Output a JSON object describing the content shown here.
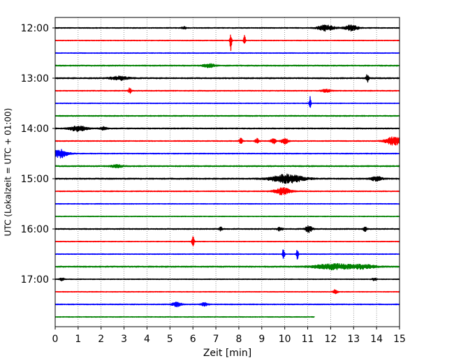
{
  "chart_data": {
    "type": "line",
    "title": "",
    "xlabel": "Zeit  [min]",
    "ylabel": "UTC (Lokalzeit = UTC + 01:00)",
    "xlim": [
      0,
      15
    ],
    "x_ticks": [
      0,
      1,
      2,
      3,
      4,
      5,
      6,
      7,
      8,
      9,
      10,
      11,
      12,
      13,
      14,
      15
    ],
    "y_tick_labels": [
      "12:00",
      "13:00",
      "14:00",
      "15:00",
      "16:00",
      "17:00"
    ],
    "y_tick_traces": [
      0,
      4,
      8,
      12,
      16,
      20
    ],
    "grid": "vertical dotted at each minute",
    "trace_interval_min": 15,
    "trace_colors": [
      "#000000",
      "#ff0000",
      "#0000ff",
      "#008000"
    ],
    "traces": [
      {
        "start": "12:00",
        "end_min": 15,
        "color": "#000000",
        "noise": 0.6,
        "events": [
          {
            "t": 5.6,
            "a": 2.0,
            "w": 0.1
          },
          {
            "t": 11.8,
            "a": 4.5,
            "w": 0.35
          },
          {
            "t": 12.9,
            "a": 4.0,
            "w": 0.3
          }
        ]
      },
      {
        "start": "12:15",
        "end_min": 15,
        "color": "#ff0000",
        "noise": 0.5,
        "events": [
          {
            "t": 7.65,
            "a": 14,
            "w": 0.04
          },
          {
            "t": 8.25,
            "a": 8,
            "w": 0.04
          }
        ]
      },
      {
        "start": "12:30",
        "end_min": 15,
        "color": "#0000ff",
        "noise": 0.5,
        "events": []
      },
      {
        "start": "12:45",
        "end_min": 15,
        "color": "#008000",
        "noise": 0.7,
        "events": [
          {
            "t": 6.7,
            "a": 2.5,
            "w": 0.25
          }
        ]
      },
      {
        "start": "13:00",
        "end_min": 15,
        "color": "#000000",
        "noise": 0.8,
        "events": [
          {
            "t": 2.8,
            "a": 2.5,
            "w": 0.4
          },
          {
            "t": 13.6,
            "a": 6,
            "w": 0.06
          }
        ]
      },
      {
        "start": "13:15",
        "end_min": 15,
        "color": "#ff0000",
        "noise": 0.6,
        "events": [
          {
            "t": 3.25,
            "a": 4,
            "w": 0.06
          },
          {
            "t": 11.8,
            "a": 2,
            "w": 0.2
          }
        ]
      },
      {
        "start": "13:30",
        "end_min": 15,
        "color": "#0000ff",
        "noise": 0.5,
        "events": [
          {
            "t": 11.1,
            "a": 10,
            "w": 0.04
          }
        ]
      },
      {
        "start": "13:45",
        "end_min": 15,
        "color": "#008000",
        "noise": 0.7,
        "events": []
      },
      {
        "start": "14:00",
        "end_min": 15,
        "color": "#000000",
        "noise": 0.7,
        "events": [
          {
            "t": 1.0,
            "a": 4,
            "w": 0.35
          },
          {
            "t": 2.1,
            "a": 2,
            "w": 0.15
          }
        ]
      },
      {
        "start": "14:15",
        "end_min": 15,
        "color": "#ff0000",
        "noise": 0.6,
        "events": [
          {
            "t": 8.1,
            "a": 4,
            "w": 0.08
          },
          {
            "t": 8.8,
            "a": 4,
            "w": 0.08
          },
          {
            "t": 9.5,
            "a": 4,
            "w": 0.1
          },
          {
            "t": 10.0,
            "a": 4,
            "w": 0.15
          },
          {
            "t": 14.75,
            "a": 6,
            "w": 0.35
          }
        ]
      },
      {
        "start": "14:30",
        "end_min": 15,
        "color": "#0000ff",
        "noise": 0.6,
        "events": [
          {
            "t": 0.2,
            "a": 6,
            "w": 0.35
          }
        ]
      },
      {
        "start": "14:45",
        "end_min": 15,
        "color": "#008000",
        "noise": 0.8,
        "events": [
          {
            "t": 2.7,
            "a": 2,
            "w": 0.25
          }
        ]
      },
      {
        "start": "15:00",
        "end_min": 15,
        "color": "#000000",
        "noise": 0.8,
        "events": [
          {
            "t": 10.1,
            "a": 6,
            "w": 0.7
          },
          {
            "t": 14.0,
            "a": 3,
            "w": 0.25
          }
        ]
      },
      {
        "start": "15:15",
        "end_min": 15,
        "color": "#ff0000",
        "noise": 0.6,
        "events": [
          {
            "t": 9.9,
            "a": 5,
            "w": 0.35
          }
        ]
      },
      {
        "start": "15:30",
        "end_min": 15,
        "color": "#0000ff",
        "noise": 0.5,
        "events": []
      },
      {
        "start": "15:45",
        "end_min": 15,
        "color": "#008000",
        "noise": 0.5,
        "events": []
      },
      {
        "start": "16:00",
        "end_min": 15,
        "color": "#000000",
        "noise": 0.7,
        "events": [
          {
            "t": 7.2,
            "a": 2.5,
            "w": 0.08
          },
          {
            "t": 9.8,
            "a": 3,
            "w": 0.1
          },
          {
            "t": 11.05,
            "a": 5,
            "w": 0.15
          },
          {
            "t": 13.5,
            "a": 3,
            "w": 0.08
          }
        ]
      },
      {
        "start": "16:15",
        "end_min": 15,
        "color": "#ff0000",
        "noise": 0.5,
        "events": [
          {
            "t": 6.0,
            "a": 8,
            "w": 0.05
          }
        ]
      },
      {
        "start": "16:30",
        "end_min": 15,
        "color": "#0000ff",
        "noise": 0.5,
        "events": [
          {
            "t": 9.95,
            "a": 12,
            "w": 0.04
          },
          {
            "t": 10.55,
            "a": 8,
            "w": 0.04
          }
        ]
      },
      {
        "start": "16:45",
        "end_min": 15,
        "color": "#008000",
        "noise": 0.8,
        "events": [
          {
            "t": 12.2,
            "a": 4,
            "w": 0.9
          },
          {
            "t": 13.5,
            "a": 2.5,
            "w": 0.5
          }
        ]
      },
      {
        "start": "17:00",
        "end_min": 15,
        "color": "#000000",
        "noise": 0.5,
        "events": [
          {
            "t": 0.3,
            "a": 2,
            "w": 0.1
          },
          {
            "t": 13.9,
            "a": 2,
            "w": 0.1
          }
        ]
      },
      {
        "start": "17:15",
        "end_min": 15,
        "color": "#ff0000",
        "noise": 0.5,
        "events": [
          {
            "t": 12.2,
            "a": 3,
            "w": 0.1
          }
        ]
      },
      {
        "start": "17:30",
        "end_min": 15,
        "color": "#0000ff",
        "noise": 0.6,
        "events": [
          {
            "t": 5.3,
            "a": 3,
            "w": 0.2
          },
          {
            "t": 6.5,
            "a": 2.5,
            "w": 0.15
          }
        ]
      },
      {
        "start": "17:45",
        "end_min": 11.3,
        "color": "#008000",
        "noise": 0.5,
        "events": []
      }
    ]
  }
}
